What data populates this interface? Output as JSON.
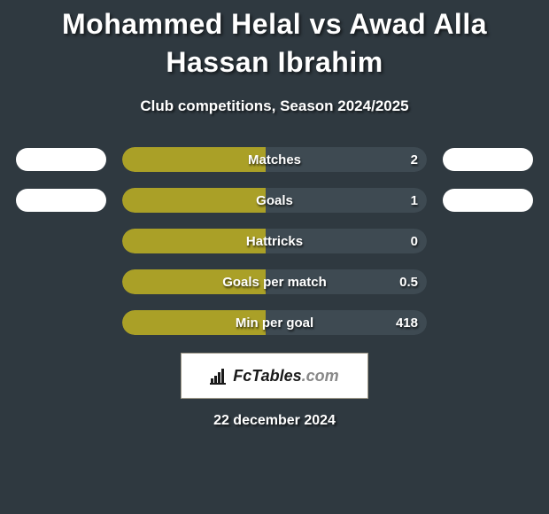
{
  "title": "Mohammed Helal vs Awad Alla Hassan Ibrahim",
  "subtitle": "Club competitions, Season 2024/2025",
  "date": "22 december 2024",
  "branding": {
    "label_main": "FcTables",
    "label_suffix": ".com"
  },
  "colors": {
    "background": "#2f3940",
    "bar_left_fill": "#aaa027",
    "bar_right_fill": "#3e4a52",
    "pill": "#ffffff",
    "text": "#ffffff"
  },
  "typography": {
    "title_fontsize": 32,
    "subtitle_fontsize": 17,
    "bar_label_fontsize": 15,
    "date_fontsize": 16
  },
  "stats": [
    {
      "label": "Matches",
      "left_value": "",
      "right_value": "2",
      "left_fill_pct": 47,
      "right_fill_pct": 53,
      "show_left_pill": true,
      "show_right_pill": true
    },
    {
      "label": "Goals",
      "left_value": "",
      "right_value": "1",
      "left_fill_pct": 47,
      "right_fill_pct": 53,
      "show_left_pill": true,
      "show_right_pill": true
    },
    {
      "label": "Hattricks",
      "left_value": "",
      "right_value": "0",
      "left_fill_pct": 47,
      "right_fill_pct": 53,
      "show_left_pill": false,
      "show_right_pill": false
    },
    {
      "label": "Goals per match",
      "left_value": "",
      "right_value": "0.5",
      "left_fill_pct": 47,
      "right_fill_pct": 53,
      "show_left_pill": false,
      "show_right_pill": false
    },
    {
      "label": "Min per goal",
      "left_value": "",
      "right_value": "418",
      "left_fill_pct": 47,
      "right_fill_pct": 53,
      "show_left_pill": false,
      "show_right_pill": false
    }
  ]
}
